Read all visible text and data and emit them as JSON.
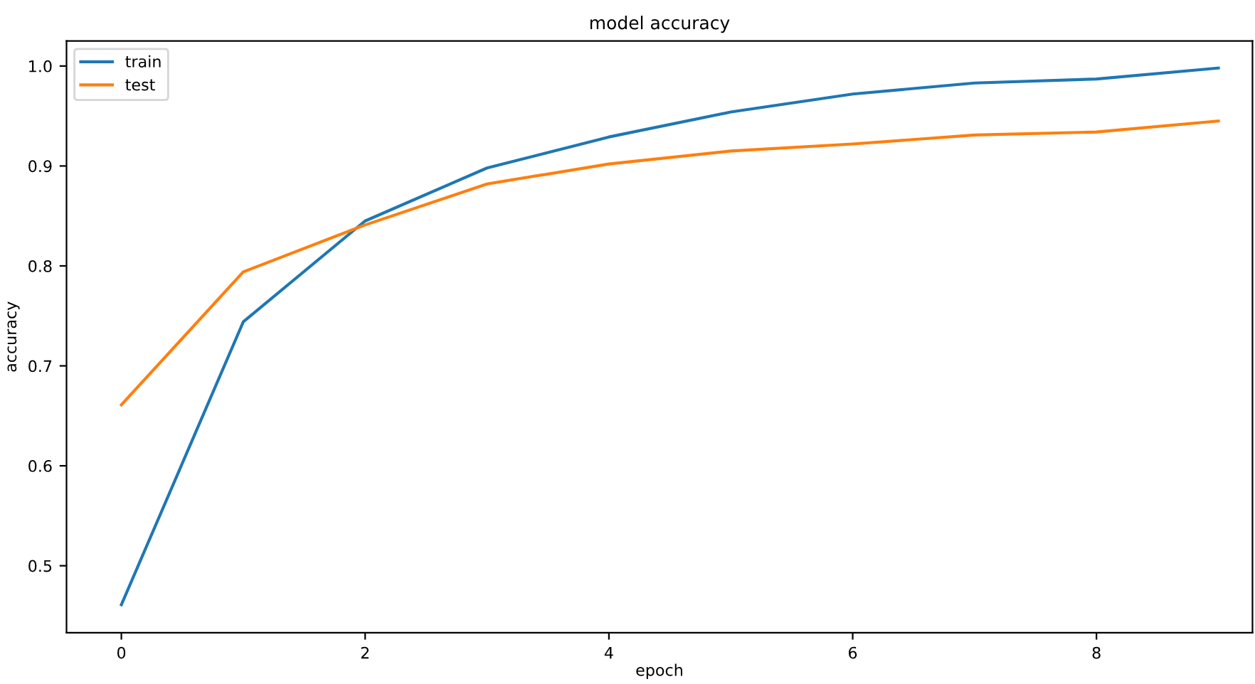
{
  "chart_data": {
    "type": "line",
    "title": "model accuracy",
    "xlabel": "epoch",
    "ylabel": "accuracy",
    "x": [
      0,
      1,
      2,
      3,
      4,
      5,
      6,
      7,
      8,
      9
    ],
    "series": [
      {
        "name": "train",
        "color": "#1f77b4",
        "values": [
          0.461,
          0.744,
          0.845,
          0.898,
          0.929,
          0.954,
          0.972,
          0.983,
          0.987,
          0.998
        ]
      },
      {
        "name": "test",
        "color": "#ff7f0e",
        "values": [
          0.661,
          0.794,
          0.841,
          0.882,
          0.902,
          0.915,
          0.922,
          0.931,
          0.934,
          0.945
        ]
      }
    ],
    "xlim": [
      -0.45,
      9.28
    ],
    "xticks": [
      0,
      2,
      4,
      6,
      8
    ],
    "ylim": [
      0.433,
      1.025
    ],
    "yticks": [
      0.5,
      0.6,
      0.7,
      0.8,
      0.9,
      {
        "value": 1,
        "label": "1.0"
      }
    ],
    "grid": false,
    "legend": "top left",
    "marker": "none",
    "line_style": "solid"
  }
}
